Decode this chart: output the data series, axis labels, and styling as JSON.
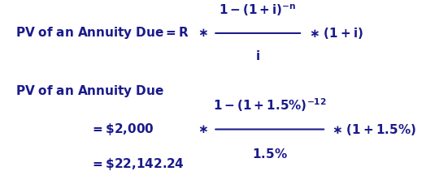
{
  "bg_color": "#ffffff",
  "text_color": "#1a1a8c",
  "figsize": [
    5.4,
    2.27
  ],
  "dpi": 100,
  "formula_label": "PV of an Annuity Due = R",
  "section_label": "PV of an Annuity Due",
  "calc_prefix": "= $2,000",
  "result": "= $22,142.24"
}
